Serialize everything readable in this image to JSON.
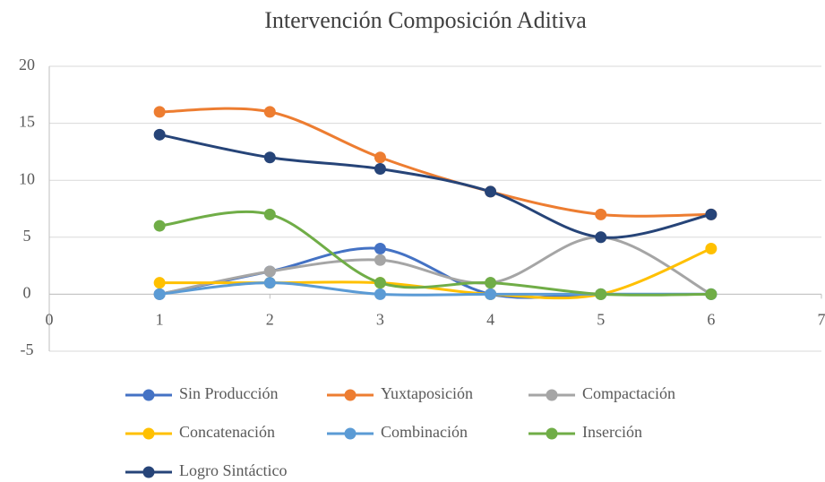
{
  "chart_data": {
    "type": "scatter-smooth",
    "title": "Intervención Composición Aditiva",
    "x": [
      1,
      2,
      3,
      4,
      5,
      6
    ],
    "series": [
      {
        "name": "Sin Producción",
        "color": "#4472c4",
        "values": [
          0,
          2,
          4,
          0,
          0,
          0
        ]
      },
      {
        "name": "Yuxtaposición",
        "color": "#ed7d31",
        "values": [
          16,
          16,
          12,
          9,
          7,
          7
        ]
      },
      {
        "name": "Compactación",
        "color": "#a5a5a5",
        "values": [
          0,
          2,
          3,
          1,
          5,
          0
        ]
      },
      {
        "name": "Concatenación",
        "color": "#ffc000",
        "values": [
          1,
          1,
          1,
          0,
          0,
          4
        ]
      },
      {
        "name": "Combinación",
        "color": "#5b9bd5",
        "values": [
          0,
          1,
          0,
          0,
          0,
          0
        ]
      },
      {
        "name": "Inserción",
        "color": "#70ad47",
        "values": [
          6,
          7,
          1,
          1,
          0,
          0
        ]
      },
      {
        "name": "Logro Sintáctico",
        "color": "#264478",
        "values": [
          14,
          12,
          11,
          9,
          5,
          7
        ]
      }
    ],
    "xlim": [
      0,
      7
    ],
    "xticks": [
      0,
      1,
      2,
      3,
      4,
      5,
      6,
      7
    ],
    "ylim": [
      -5,
      20
    ],
    "yticks": [
      -5,
      0,
      5,
      10,
      15,
      20
    ],
    "grid": true
  }
}
